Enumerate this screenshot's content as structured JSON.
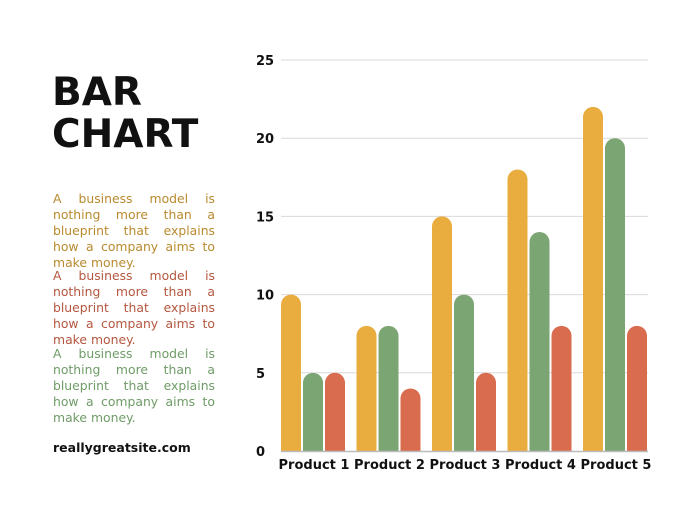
{
  "heading": {
    "line1": "BAR",
    "line2": "CHART"
  },
  "paragraphs": [
    "A business model is nothing more than a blueprint that explains how a company aims to make money.",
    "A business model is nothing more than a blueprint that explains how a company aims to make money.",
    "A business model is nothing more than a blueprint that explains how a company aims to make money."
  ],
  "website": "reallygreatsite.com",
  "colors": {
    "series1": "#E9AC3F",
    "series2": "#7BA572",
    "series3": "#D96C4F"
  },
  "chart_data": {
    "type": "bar",
    "categories": [
      "Product 1",
      "Product 2",
      "Product 3",
      "Product 4",
      "Product 5"
    ],
    "series": [
      {
        "values": [
          10,
          8,
          15,
          18,
          22
        ],
        "color": "#E9AC3F"
      },
      {
        "values": [
          5,
          8,
          10,
          14,
          20
        ],
        "color": "#7BA572"
      },
      {
        "values": [
          5,
          4,
          5,
          8,
          8
        ],
        "color": "#D96C4F"
      }
    ],
    "yticks": [
      "0",
      "5",
      "10",
      "15",
      "20",
      "25"
    ],
    "ylim": [
      0,
      25
    ],
    "grid": true,
    "legend": "none"
  }
}
